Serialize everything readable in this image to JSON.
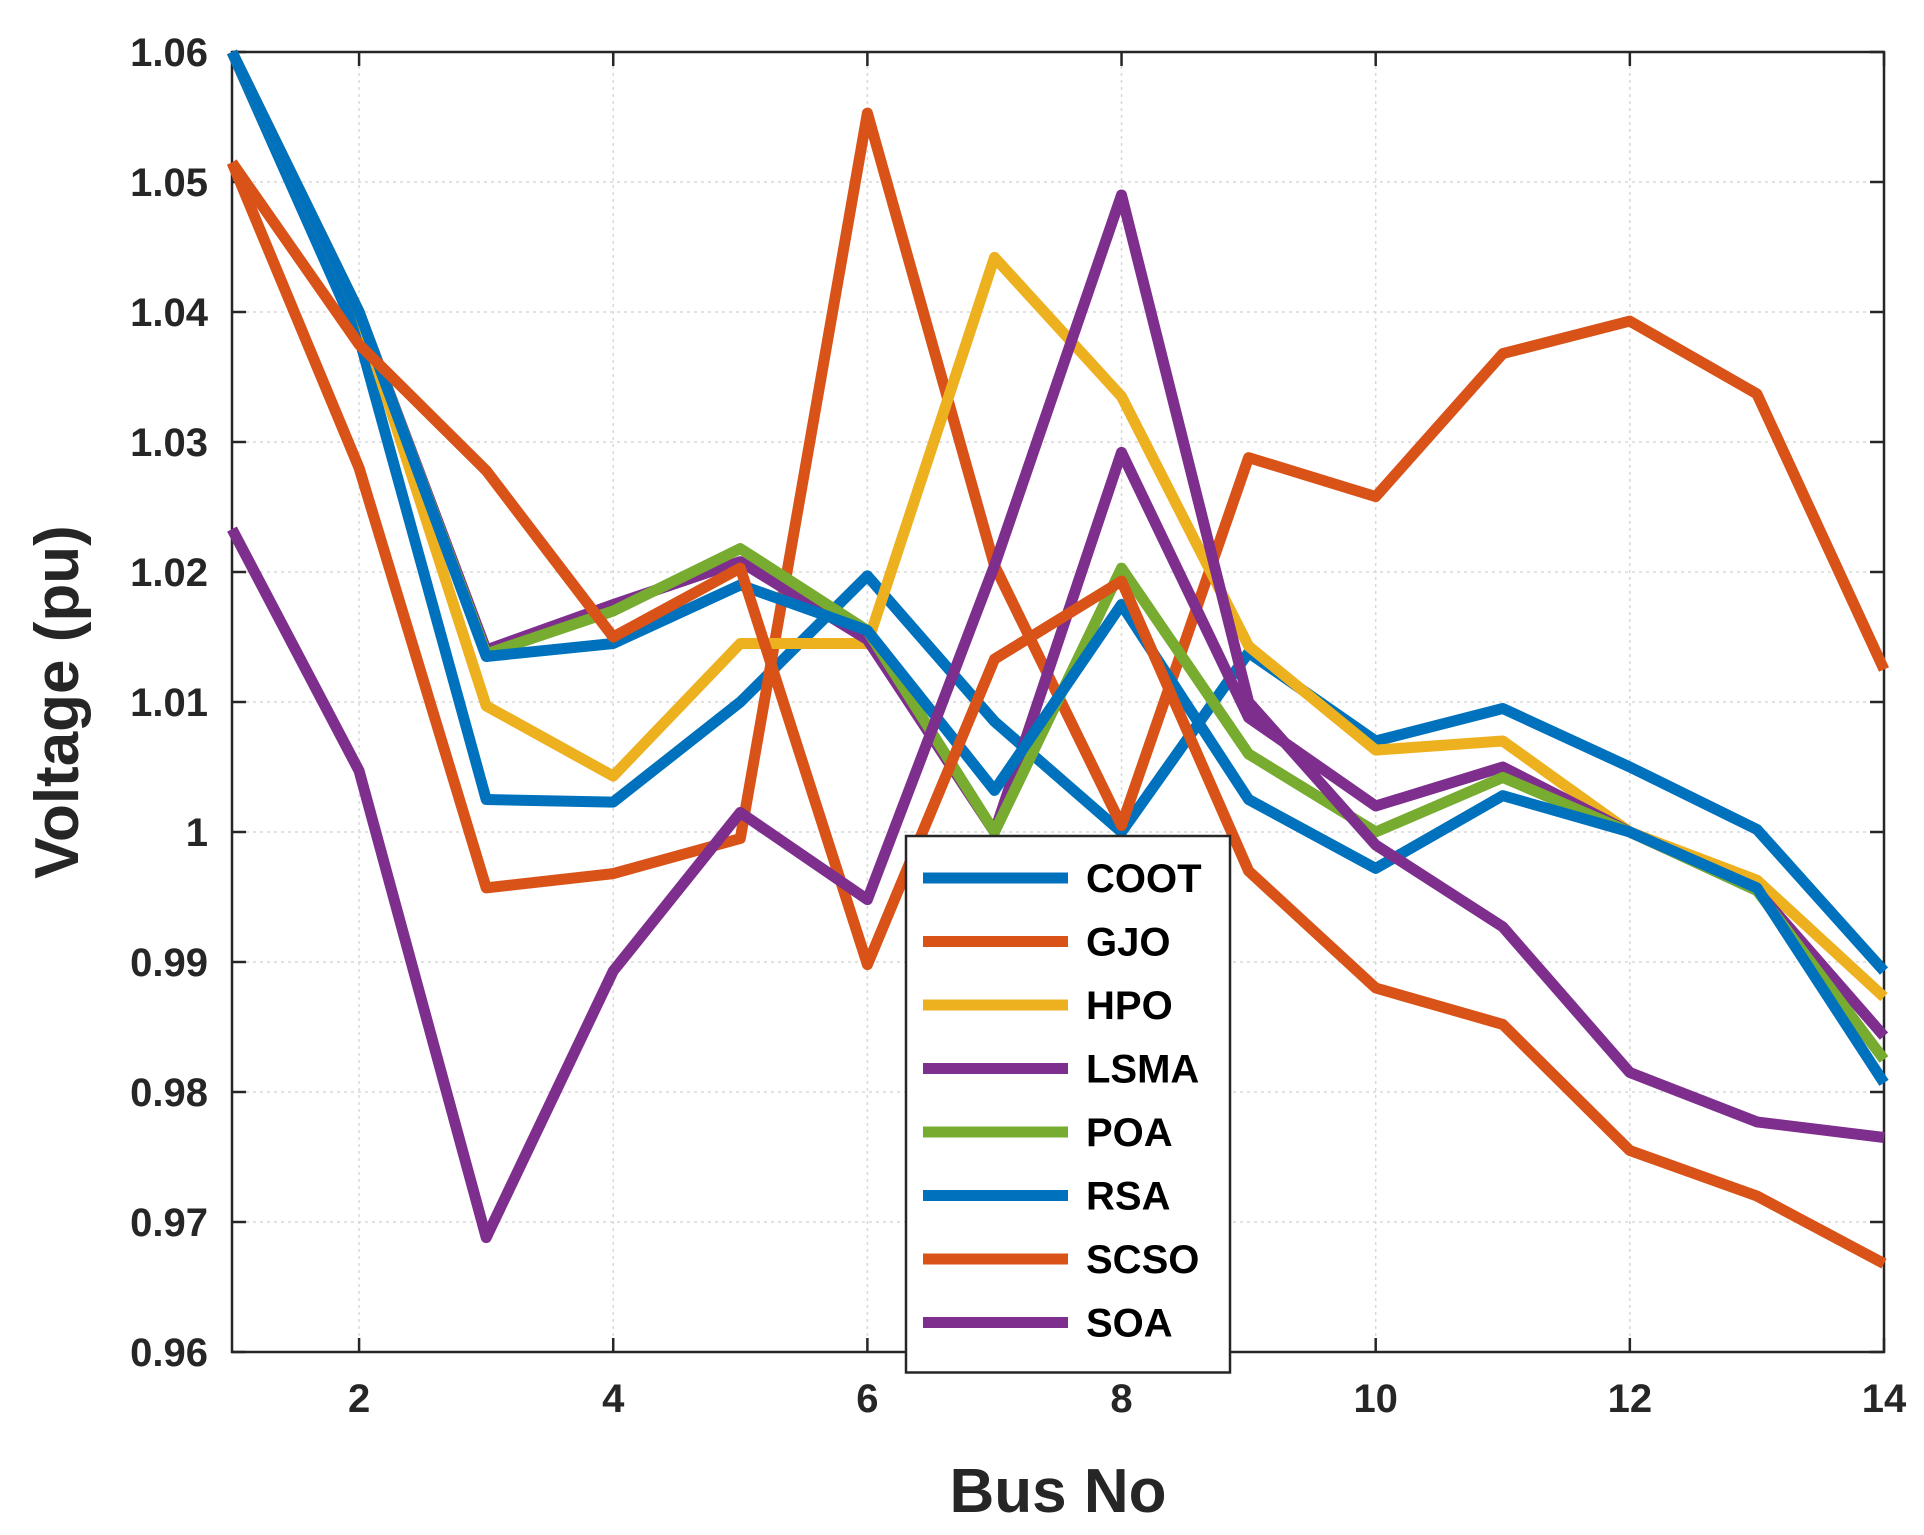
{
  "chart_data": {
    "type": "line",
    "title": "",
    "xlabel": "Bus No",
    "ylabel": "Voltage (pu)",
    "xlim": [
      1,
      14
    ],
    "ylim": [
      0.96,
      1.06
    ],
    "x": [
      1,
      2,
      3,
      4,
      5,
      6,
      7,
      8,
      9,
      10,
      11,
      12,
      13,
      14
    ],
    "xticks": [
      2,
      4,
      6,
      8,
      10,
      12,
      14
    ],
    "xtick_labels": [
      "2",
      "4",
      "6",
      "8",
      "10",
      "12",
      "14"
    ],
    "yticks": [
      0.96,
      0.97,
      0.98,
      0.99,
      1.0,
      1.01,
      1.02,
      1.03,
      1.04,
      1.05,
      1.06
    ],
    "ytick_labels": [
      "0.96",
      "0.97",
      "0.98",
      "0.99",
      "1",
      "1.01",
      "1.02",
      "1.03",
      "1.04",
      "1.05",
      "1.06"
    ],
    "grid": true,
    "legend_position": "center",
    "series": [
      {
        "name": "COOT",
        "color": "#0072BD",
        "values": [
          1.06,
          1.038,
          1.0025,
          1.0023,
          1.01,
          1.0197,
          1.0085,
          1.0,
          1.0138,
          1.007,
          1.0095,
          1.005,
          1.0002,
          0.9893
        ]
      },
      {
        "name": "GJO",
        "color": "#D95319",
        "values": [
          1.0515,
          1.028,
          0.9957,
          0.9968,
          0.9995,
          1.0553,
          1.0205,
          1.0005,
          1.0288,
          1.0258,
          1.0368,
          1.0393,
          1.0337,
          1.0125
        ]
      },
      {
        "name": "HPO",
        "color": "#EDB120",
        "values": [
          1.06,
          1.04,
          1.0097,
          1.0043,
          1.0145,
          1.0145,
          1.0442,
          1.0335,
          1.0143,
          1.0063,
          1.007,
          1.0,
          0.9963,
          0.9873
        ]
      },
      {
        "name": "LSMA",
        "color": "#7E2F8E",
        "values": [
          1.06,
          1.04,
          1.014,
          1.0175,
          1.0208,
          1.0148,
          1.0,
          1.0292,
          1.0088,
          1.002,
          1.005,
          1.0,
          0.9955,
          0.9843
        ]
      },
      {
        "name": "POA",
        "color": "#77AC30",
        "values": [
          1.06,
          1.04,
          1.0137,
          1.017,
          1.0218,
          1.0155,
          1.0,
          1.0203,
          1.006,
          1.0,
          1.0042,
          1.0,
          0.9955,
          0.9825
        ]
      },
      {
        "name": "RSA",
        "color": "#0072BD",
        "values": [
          1.06,
          1.04,
          1.0135,
          1.0145,
          1.019,
          1.0155,
          1.0032,
          1.0175,
          1.0025,
          0.9972,
          1.0028,
          1.0,
          0.9957,
          0.9807
        ]
      },
      {
        "name": "SCSO",
        "color": "#D95319",
        "values": [
          1.0515,
          1.0375,
          1.0278,
          1.015,
          1.0203,
          0.9898,
          1.0133,
          1.0193,
          0.997,
          0.988,
          0.9852,
          0.9755,
          0.972,
          0.9668
        ]
      },
      {
        "name": "SOA",
        "color": "#7E2F8E",
        "values": [
          1.0233,
          1.0047,
          0.9688,
          0.9893,
          1.0015,
          0.9948,
          1.0205,
          1.049,
          1.01,
          0.999,
          0.9927,
          0.9815,
          0.9777,
          0.9765
        ]
      }
    ]
  }
}
